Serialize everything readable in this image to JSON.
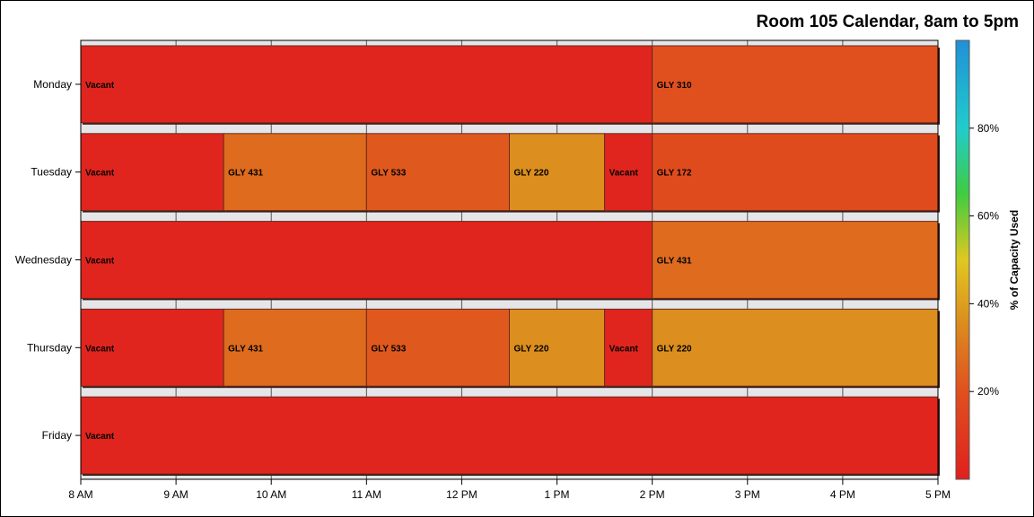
{
  "chart_data": {
    "type": "gantt",
    "title": "Room 105 Calendar, 8am to 5pm",
    "x_ticks": [
      {
        "value": 8,
        "label": "8 AM"
      },
      {
        "value": 9,
        "label": "9 AM"
      },
      {
        "value": 10,
        "label": "10 AM"
      },
      {
        "value": 11,
        "label": "11 AM"
      },
      {
        "value": 12,
        "label": "12 PM"
      },
      {
        "value": 13,
        "label": "1 PM"
      },
      {
        "value": 14,
        "label": "2 PM"
      },
      {
        "value": 15,
        "label": "3 PM"
      },
      {
        "value": 16,
        "label": "4 PM"
      },
      {
        "value": 17,
        "label": "5 PM"
      }
    ],
    "xlim": [
      8,
      17
    ],
    "categories": [
      "Monday",
      "Tuesday",
      "Wednesday",
      "Thursday",
      "Friday"
    ],
    "rows": [
      {
        "day": "Monday",
        "events": [
          {
            "label": "Vacant",
            "start": 8,
            "end": 14,
            "pct": 2
          },
          {
            "label": "GLY 310",
            "start": 14,
            "end": 17,
            "pct": 20
          }
        ]
      },
      {
        "day": "Tuesday",
        "events": [
          {
            "label": "Vacant",
            "start": 8,
            "end": 9.5,
            "pct": 2
          },
          {
            "label": "GLY 431",
            "start": 9.5,
            "end": 11,
            "pct": 27
          },
          {
            "label": "GLY 533",
            "start": 11,
            "end": 12.5,
            "pct": 22
          },
          {
            "label": "GLY 220",
            "start": 12.5,
            "end": 13.5,
            "pct": 36
          },
          {
            "label": "Vacant",
            "start": 13.5,
            "end": 14,
            "pct": 2
          },
          {
            "label": "GLY 172",
            "start": 14,
            "end": 17,
            "pct": 18
          }
        ]
      },
      {
        "day": "Wednesday",
        "events": [
          {
            "label": "Vacant",
            "start": 8,
            "end": 14,
            "pct": 2
          },
          {
            "label": "GLY 431",
            "start": 14,
            "end": 17,
            "pct": 27
          }
        ]
      },
      {
        "day": "Thursday",
        "events": [
          {
            "label": "Vacant",
            "start": 8,
            "end": 9.5,
            "pct": 2
          },
          {
            "label": "GLY 431",
            "start": 9.5,
            "end": 11,
            "pct": 27
          },
          {
            "label": "GLY 533",
            "start": 11,
            "end": 12.5,
            "pct": 22
          },
          {
            "label": "GLY 220",
            "start": 12.5,
            "end": 13.5,
            "pct": 36
          },
          {
            "label": "Vacant",
            "start": 13.5,
            "end": 14,
            "pct": 2
          },
          {
            "label": "GLY 220",
            "start": 14,
            "end": 17,
            "pct": 36
          }
        ]
      },
      {
        "day": "Friday",
        "events": [
          {
            "label": "Vacant",
            "start": 8,
            "end": 17,
            "pct": 2
          }
        ]
      }
    ],
    "colorbar": {
      "title": "% of Capacity Used",
      "range": [
        0,
        100
      ],
      "ticks": [
        {
          "value": 20,
          "label": "20%"
        },
        {
          "value": 40,
          "label": "40%"
        },
        {
          "value": 60,
          "label": "60%"
        },
        {
          "value": 80,
          "label": "80%"
        }
      ],
      "colors": [
        "#e0201e",
        "#e0501e",
        "#dc8a1e",
        "#e0c820",
        "#40cc40",
        "#20cccc",
        "#2090d8"
      ],
      "stops": [
        0,
        20,
        35,
        50,
        65,
        80,
        100
      ]
    }
  }
}
